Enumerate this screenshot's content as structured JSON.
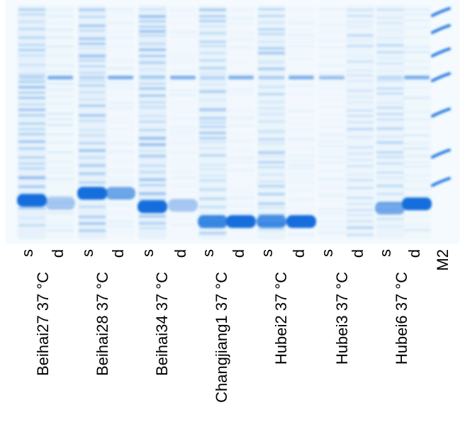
{
  "lanes": [
    {
      "label": "Beihai27 37 °C",
      "s": "s",
      "d": "d"
    },
    {
      "label": "Beihai28 37 °C",
      "s": "s",
      "d": "d"
    },
    {
      "label": "Beihai34 37 °C",
      "s": "s",
      "d": "d"
    },
    {
      "label": "Changjiang1 37 °C",
      "s": "s",
      "d": "d"
    },
    {
      "label": "Hubei2 37 °C",
      "s": "s",
      "d": "d"
    },
    {
      "label": "Hubei3 37 °C",
      "s": "s",
      "d": "d"
    },
    {
      "label": "Hubei6 37 °C",
      "s": "s",
      "d": "d"
    }
  ],
  "marker": "M2"
}
